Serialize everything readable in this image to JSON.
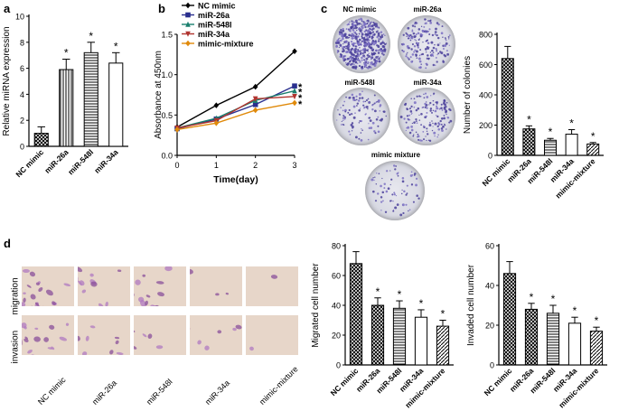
{
  "panels": {
    "a": "a",
    "b": "b",
    "c": "c",
    "d": "d"
  },
  "chart_data": [
    {
      "id": "a",
      "type": "bar",
      "ylabel": "Relative miRNA expression",
      "categories": [
        "NC mimic",
        "miR-26a",
        "miR-548l",
        "miR-34a"
      ],
      "values": [
        1.0,
        5.9,
        7.2,
        6.4
      ],
      "errors": [
        0.5,
        0.8,
        0.8,
        0.8
      ],
      "significance": [
        "",
        "*",
        "*",
        "*"
      ],
      "ylim": [
        0,
        10
      ],
      "yticks": [
        0,
        2,
        4,
        6,
        8,
        10
      ],
      "patterns": [
        "cross",
        "vstripe",
        "hstripe",
        "white"
      ]
    },
    {
      "id": "b",
      "type": "line",
      "xlabel": "Time(day)",
      "ylabel": "Absorbance at 450nm",
      "x": [
        0,
        1,
        2,
        3
      ],
      "xlim": [
        0,
        3
      ],
      "ylim": [
        0,
        1.5
      ],
      "yticks": [
        0.0,
        0.5,
        1.0,
        1.5
      ],
      "xticks": [
        0,
        1,
        2,
        3
      ],
      "legend_position": "top-left",
      "series": [
        {
          "name": "NC mimic",
          "values": [
            0.35,
            0.62,
            0.85,
            1.29
          ],
          "color": "#000000",
          "marker": "diamond"
        },
        {
          "name": "miR-26a",
          "values": [
            0.33,
            0.45,
            0.63,
            0.86
          ],
          "color": "#2a2f8e",
          "marker": "square"
        },
        {
          "name": "miR-548l",
          "values": [
            0.34,
            0.46,
            0.68,
            0.8
          ],
          "color": "#1b7f6e",
          "marker": "triangle"
        },
        {
          "name": "miR-34a",
          "values": [
            0.34,
            0.43,
            0.7,
            0.73
          ],
          "color": "#b0342f",
          "marker": "tri-down"
        },
        {
          "name": "mimic-mixture",
          "values": [
            0.32,
            0.4,
            0.56,
            0.65
          ],
          "color": "#e08a0b",
          "marker": "diamond"
        }
      ],
      "significance": [
        "*",
        "*",
        "*",
        "*"
      ]
    },
    {
      "id": "c",
      "type": "bar",
      "ylabel": "Number of colonies",
      "categories": [
        "NC mimic",
        "miR-26a",
        "miR-548l",
        "miR-34a",
        "mimic-mixture"
      ],
      "values": [
        640,
        175,
        100,
        140,
        75
      ],
      "errors": [
        80,
        20,
        12,
        30,
        10
      ],
      "significance": [
        "",
        "*",
        "*",
        "*",
        "*"
      ],
      "ylim": [
        0,
        800
      ],
      "yticks": [
        0,
        200,
        400,
        600,
        800
      ],
      "patterns": [
        "cross",
        "cross",
        "hstripe",
        "white",
        "diag"
      ]
    },
    {
      "id": "d1",
      "type": "bar",
      "ylabel": "Migrated cell number",
      "categories": [
        "NC mimic",
        "miR-26a",
        "miR-548l",
        "miR-34a",
        "mimic-mixture"
      ],
      "values": [
        68,
        40,
        38,
        32,
        26
      ],
      "errors": [
        8,
        5,
        5,
        5,
        4
      ],
      "significance": [
        "",
        "*",
        "*",
        "*",
        "*"
      ],
      "ylim": [
        0,
        80
      ],
      "yticks": [
        0,
        20,
        40,
        60,
        80
      ],
      "patterns": [
        "cross",
        "cross",
        "hstripe",
        "white",
        "diag"
      ]
    },
    {
      "id": "d2",
      "type": "bar",
      "ylabel": "Invaded cell number",
      "categories": [
        "NC mimic",
        "miR-26a",
        "miR-548l",
        "miR-34a",
        "mimic-mixture"
      ],
      "values": [
        46,
        28,
        26,
        21,
        17
      ],
      "errors": [
        6,
        3,
        4,
        3,
        2
      ],
      "significance": [
        "",
        "*",
        "*",
        "*",
        "*"
      ],
      "ylim": [
        0,
        60
      ],
      "yticks": [
        0,
        20,
        40,
        60
      ],
      "patterns": [
        "cross",
        "cross",
        "hstripe",
        "white",
        "diag"
      ]
    }
  ],
  "plates": {
    "nc": "NC mimic",
    "m26": "miR-26a",
    "m548": "miR-548l",
    "m34": "miR-34a",
    "mix": "mimic mixture"
  },
  "micrographs": {
    "row_labels": [
      "migration",
      "invasion"
    ],
    "col_labels": [
      "NC mimic",
      "miR-26a",
      "miR-548l",
      "miR-34a",
      "mimic-mixture"
    ]
  }
}
